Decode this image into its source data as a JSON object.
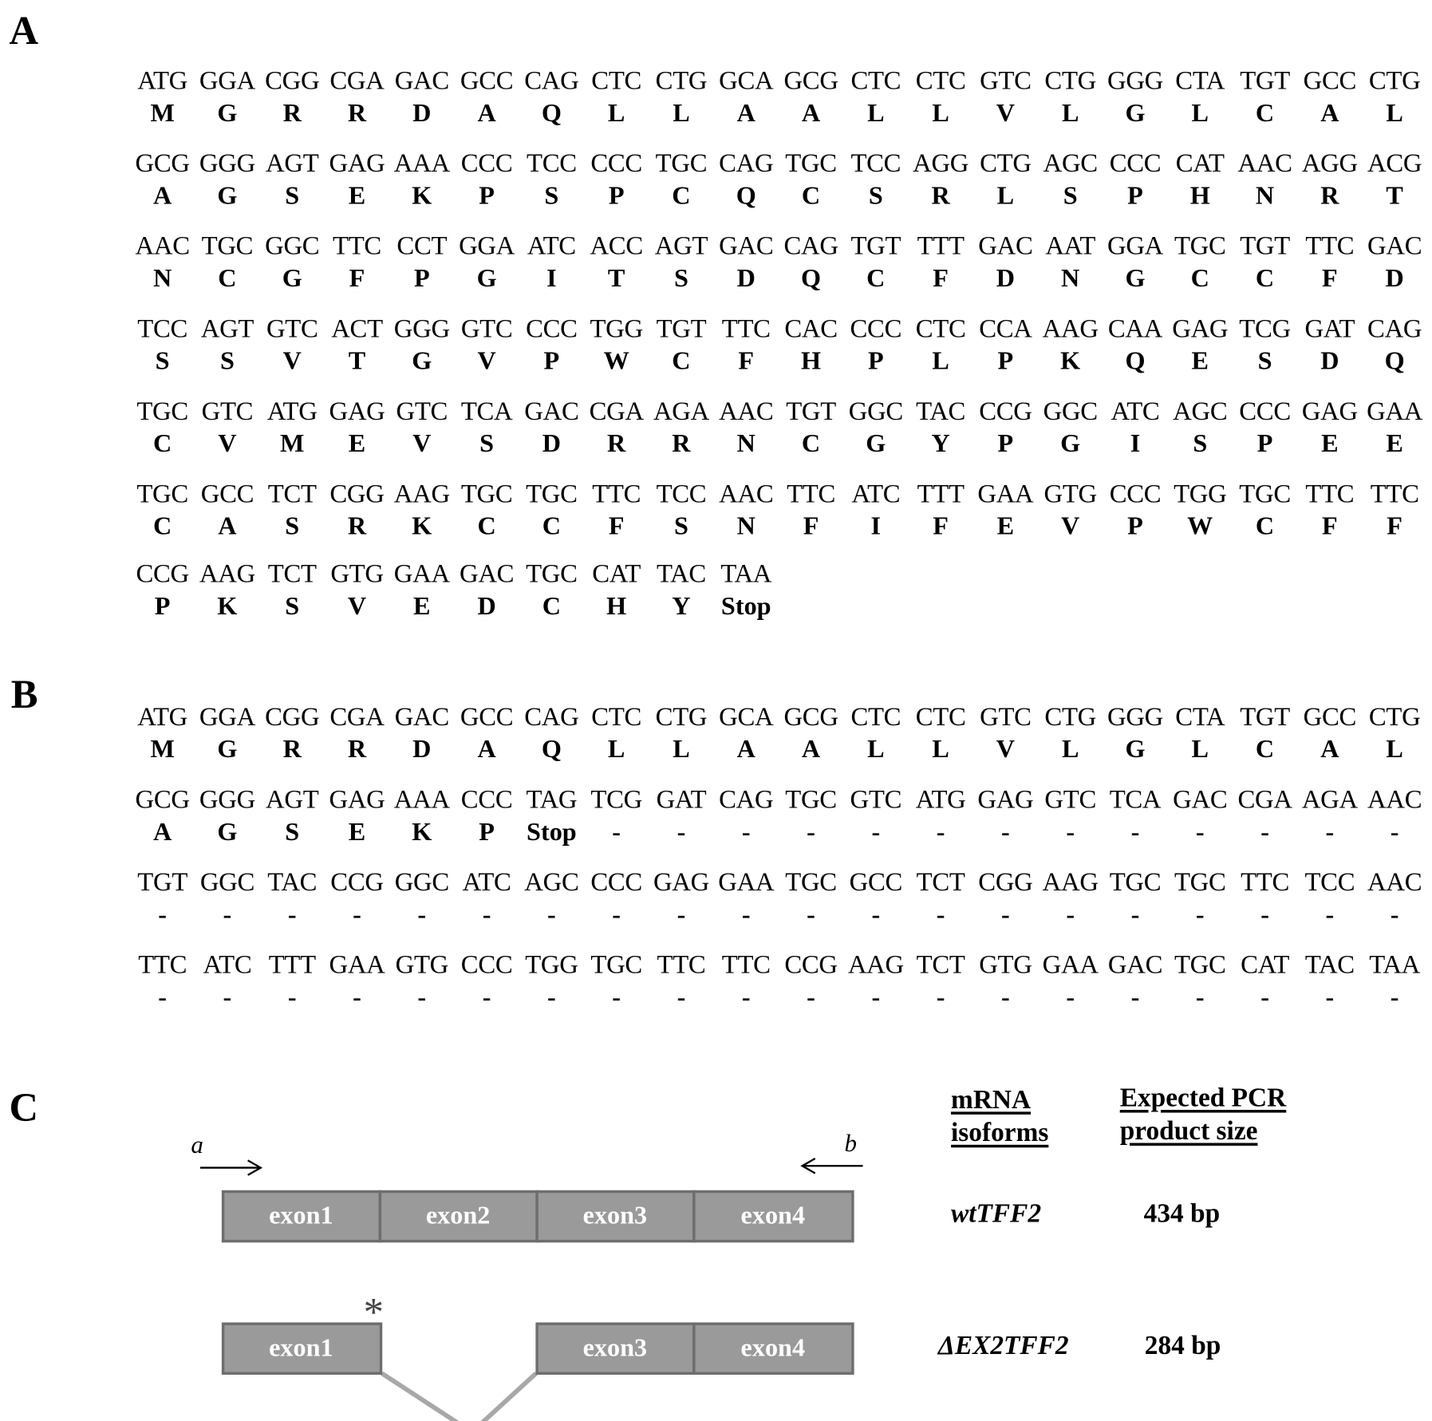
{
  "panels": {
    "a": "A",
    "b": "B",
    "c": "C"
  },
  "sectionA": [
    {
      "codons": [
        "ATG",
        "GGA",
        "CGG",
        "CGA",
        "GAC",
        "GCC",
        "CAG",
        "CTC",
        "CTG",
        "GCA",
        "GCG",
        "CTC",
        "CTC",
        "GTC",
        "CTG",
        "GGG",
        "CTA",
        "TGT",
        "GCC",
        "CTG"
      ],
      "aa": [
        "M",
        "G",
        "R",
        "R",
        "D",
        "A",
        "Q",
        "L",
        "L",
        "A",
        "A",
        "L",
        "L",
        "V",
        "L",
        "G",
        "L",
        "C",
        "A",
        "L"
      ]
    },
    {
      "codons": [
        "GCG",
        "GGG",
        "AGT",
        "GAG",
        "AAA",
        "CCC",
        "TCC",
        "CCC",
        "TGC",
        "CAG",
        "TGC",
        "TCC",
        "AGG",
        "CTG",
        "AGC",
        "CCC",
        "CAT",
        "AAC",
        "AGG",
        "ACG"
      ],
      "aa": [
        "A",
        "G",
        "S",
        "E",
        "K",
        "P",
        "S",
        "P",
        "C",
        "Q",
        "C",
        "S",
        "R",
        "L",
        "S",
        "P",
        "H",
        "N",
        "R",
        "T"
      ]
    },
    {
      "codons": [
        "AAC",
        "TGC",
        "GGC",
        "TTC",
        "CCT",
        "GGA",
        "ATC",
        "ACC",
        "AGT",
        "GAC",
        "CAG",
        "TGT",
        "TTT",
        "GAC",
        "AAT",
        "GGA",
        "TGC",
        "TGT",
        "TTC",
        "GAC"
      ],
      "aa": [
        "N",
        "C",
        "G",
        "F",
        "P",
        "G",
        "I",
        "T",
        "S",
        "D",
        "Q",
        "C",
        "F",
        "D",
        "N",
        "G",
        "C",
        "C",
        "F",
        "D"
      ]
    },
    {
      "codons": [
        "TCC",
        "AGT",
        "GTC",
        "ACT",
        "GGG",
        "GTC",
        "CCC",
        "TGG",
        "TGT",
        "TTC",
        "CAC",
        "CCC",
        "CTC",
        "CCA",
        "AAG",
        "CAA",
        "GAG",
        "TCG",
        "GAT",
        "CAG"
      ],
      "aa": [
        "S",
        "S",
        "V",
        "T",
        "G",
        "V",
        "P",
        "W",
        "C",
        "F",
        "H",
        "P",
        "L",
        "P",
        "K",
        "Q",
        "E",
        "S",
        "D",
        "Q"
      ]
    },
    {
      "codons": [
        "TGC",
        "GTC",
        "ATG",
        "GAG",
        "GTC",
        "TCA",
        "GAC",
        "CGA",
        "AGA",
        "AAC",
        "TGT",
        "GGC",
        "TAC",
        "CCG",
        "GGC",
        "ATC",
        "AGC",
        "CCC",
        "GAG",
        "GAA"
      ],
      "aa": [
        "C",
        "V",
        "M",
        "E",
        "V",
        "S",
        "D",
        "R",
        "R",
        "N",
        "C",
        "G",
        "Y",
        "P",
        "G",
        "I",
        "S",
        "P",
        "E",
        "E"
      ]
    },
    {
      "codons": [
        "TGC",
        "GCC",
        "TCT",
        "CGG",
        "AAG",
        "TGC",
        "TGC",
        "TTC",
        "TCC",
        "AAC",
        "TTC",
        "ATC",
        "TTT",
        "GAA",
        "GTG",
        "CCC",
        "TGG",
        "TGC",
        "TTC",
        "TTC"
      ],
      "aa": [
        "C",
        "A",
        "S",
        "R",
        "K",
        "C",
        "C",
        "F",
        "S",
        "N",
        "F",
        "I",
        "F",
        "E",
        "V",
        "P",
        "W",
        "C",
        "F",
        "F"
      ]
    },
    {
      "codons": [
        "CCG",
        "AAG",
        "TCT",
        "GTG",
        "GAA",
        "GAC",
        "TGC",
        "CAT",
        "TAC",
        "TAA"
      ],
      "aa": [
        "P",
        "K",
        "S",
        "V",
        "E",
        "D",
        "C",
        "H",
        "Y",
        "Stop"
      ]
    }
  ],
  "sectionB": [
    {
      "codons": [
        "ATG",
        "GGA",
        "CGG",
        "CGA",
        "GAC",
        "GCC",
        "CAG",
        "CTC",
        "CTG",
        "GCA",
        "GCG",
        "CTC",
        "CTC",
        "GTC",
        "CTG",
        "GGG",
        "CTA",
        "TGT",
        "GCC",
        "CTG"
      ],
      "aa": [
        "M",
        "G",
        "R",
        "R",
        "D",
        "A",
        "Q",
        "L",
        "L",
        "A",
        "A",
        "L",
        "L",
        "V",
        "L",
        "G",
        "L",
        "C",
        "A",
        "L"
      ]
    },
    {
      "codons": [
        "GCG",
        "GGG",
        "AGT",
        "GAG",
        "AAA",
        "CCC",
        "TAG",
        "TCG",
        "GAT",
        "CAG",
        "TGC",
        "GTC",
        "ATG",
        "GAG",
        "GTC",
        "TCA",
        "GAC",
        "CGA",
        "AGA",
        "AAC"
      ],
      "aa": [
        "A",
        "G",
        "S",
        "E",
        "K",
        "P",
        "Stop",
        "-",
        "-",
        "-",
        "-",
        "-",
        "-",
        "-",
        "-",
        "-",
        "-",
        "-",
        "-",
        "-"
      ]
    },
    {
      "codons": [
        "TGT",
        "GGC",
        "TAC",
        "CCG",
        "GGC",
        "ATC",
        "AGC",
        "CCC",
        "GAG",
        "GAA",
        "TGC",
        "GCC",
        "TCT",
        "CGG",
        "AAG",
        "TGC",
        "TGC",
        "TTC",
        "TCC",
        "AAC"
      ],
      "aa": [
        "-",
        "-",
        "-",
        "-",
        "-",
        "-",
        "-",
        "-",
        "-",
        "-",
        "-",
        "-",
        "-",
        "-",
        "-",
        "-",
        "-",
        "-",
        "-",
        "-"
      ]
    },
    {
      "codons": [
        "TTC",
        "ATC",
        "TTT",
        "GAA",
        "GTG",
        "CCC",
        "TGG",
        "TGC",
        "TTC",
        "TTC",
        "CCG",
        "AAG",
        "TCT",
        "GTG",
        "GAA",
        "GAC",
        "TGC",
        "CAT",
        "TAC",
        "TAA"
      ],
      "aa": [
        "-",
        "-",
        "-",
        "-",
        "-",
        "-",
        "-",
        "-",
        "-",
        "-",
        "-",
        "-",
        "-",
        "-",
        "-",
        "-",
        "-",
        "-",
        "-",
        "-"
      ]
    }
  ],
  "sectionC": {
    "primer_a": "a",
    "primer_b": "b",
    "header_isoforms": [
      "mRNA",
      "isoforms"
    ],
    "header_size": [
      "Expected PCR",
      "product size"
    ],
    "wt": {
      "exons": [
        "exon1",
        "exon2",
        "exon3",
        "exon4"
      ],
      "isoform": "wtTFF2",
      "size": "434 bp"
    },
    "del": {
      "exons": [
        "exon1",
        "exon3",
        "exon4"
      ],
      "isoform": "ΔEX2TFF2",
      "size": "284 bp",
      "marker": "*"
    },
    "colors": {
      "exon_fill": "#9a9a9a",
      "exon_border": "#6e6e6e",
      "exon_text": "#ffffff",
      "splice_line": "#a8a8a8"
    }
  }
}
